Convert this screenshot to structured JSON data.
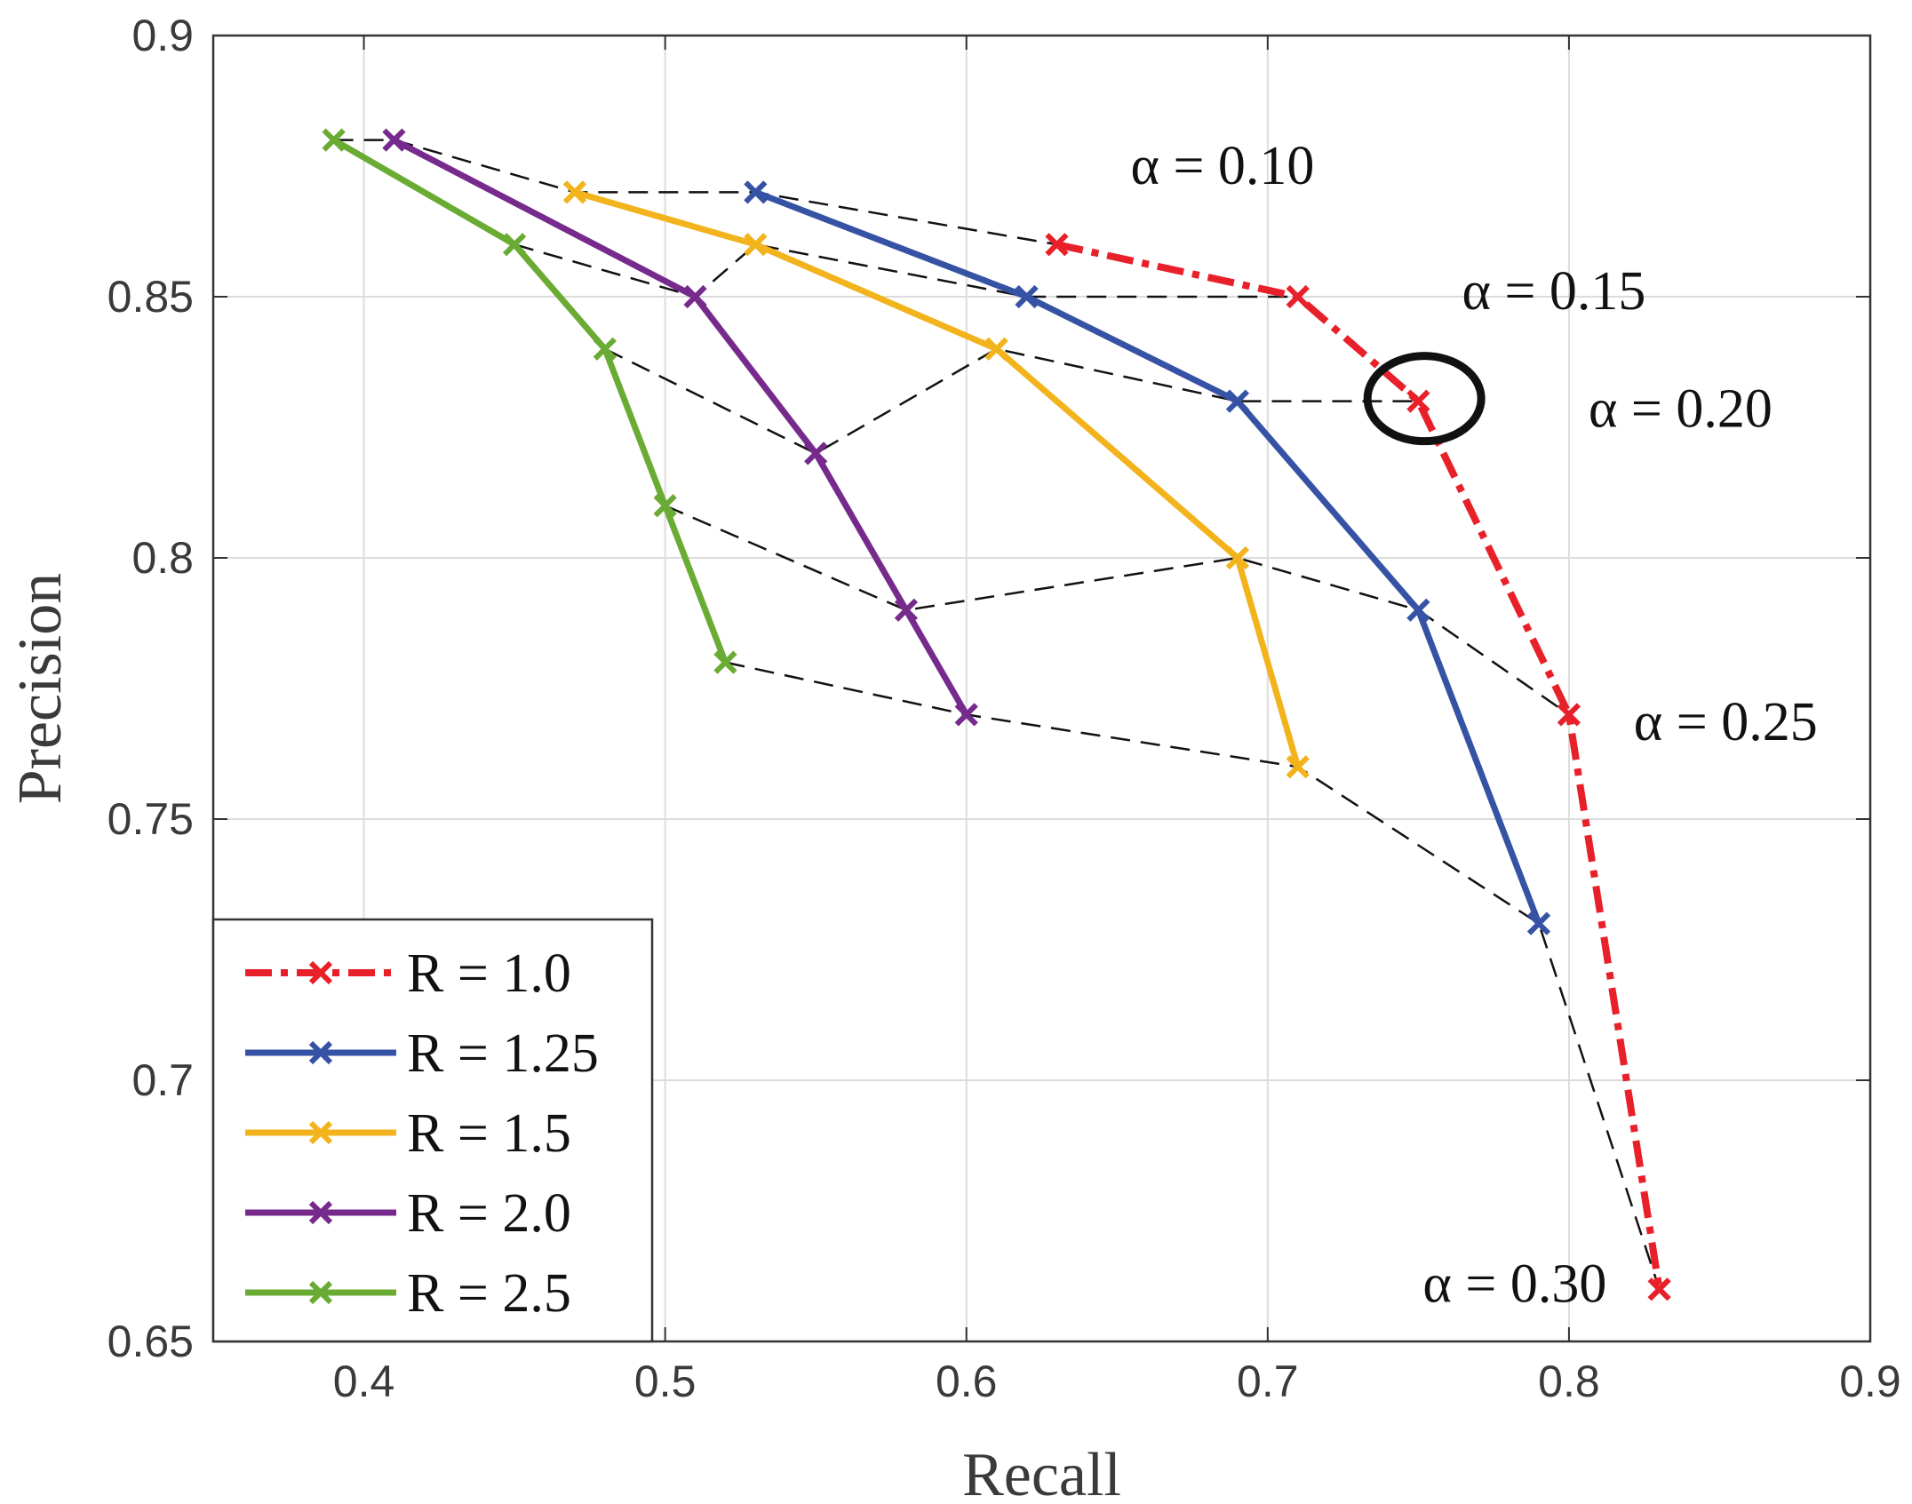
{
  "chart_data": {
    "type": "line",
    "title": "",
    "xlabel": "Recall",
    "ylabel": "Precision",
    "xlim": [
      0.35,
      0.9
    ],
    "ylim": [
      0.65,
      0.9
    ],
    "xticks": [
      0.4,
      0.5,
      0.6,
      0.7,
      0.8,
      0.9
    ],
    "xtick_labels": [
      "0.4",
      "0.5",
      "0.6",
      "0.7",
      "0.8",
      "0.9"
    ],
    "yticks": [
      0.65,
      0.7,
      0.75,
      0.8,
      0.85,
      0.9
    ],
    "ytick_labels": [
      "0.65",
      "0.7",
      "0.75",
      "0.8",
      "0.85",
      "0.9"
    ],
    "grid": true,
    "legend_position": "bottom-left",
    "series": [
      {
        "name": "R = 1.0",
        "color": "#e8202a",
        "style": "dashdot",
        "x": [
          0.63,
          0.71,
          0.75,
          0.8,
          0.83
        ],
        "y": [
          0.86,
          0.85,
          0.83,
          0.77,
          0.66
        ]
      },
      {
        "name": "R = 1.25",
        "color": "#3552a4",
        "style": "solid",
        "x": [
          0.53,
          0.62,
          0.69,
          0.75,
          0.79
        ],
        "y": [
          0.87,
          0.85,
          0.83,
          0.79,
          0.73
        ]
      },
      {
        "name": "R = 1.5",
        "color": "#f2b31c",
        "style": "solid",
        "x": [
          0.47,
          0.53,
          0.61,
          0.69,
          0.71
        ],
        "y": [
          0.87,
          0.86,
          0.84,
          0.8,
          0.76
        ]
      },
      {
        "name": "R = 2.0",
        "color": "#762a8c",
        "style": "solid",
        "x": [
          0.41,
          0.51,
          0.55,
          0.58,
          0.6
        ],
        "y": [
          0.88,
          0.85,
          0.82,
          0.79,
          0.77
        ]
      },
      {
        "name": "R = 2.5",
        "color": "#6aab34",
        "style": "solid",
        "x": [
          0.39,
          0.45,
          0.48,
          0.5,
          0.52
        ],
        "y": [
          0.88,
          0.86,
          0.84,
          0.81,
          0.78
        ]
      }
    ],
    "alpha_contours": [
      {
        "alpha": "0.10",
        "x": [
          0.39,
          0.41,
          0.47,
          0.53,
          0.63
        ],
        "y": [
          0.88,
          0.88,
          0.87,
          0.87,
          0.86
        ]
      },
      {
        "alpha": "0.15",
        "x": [
          0.45,
          0.51,
          0.53,
          0.62,
          0.71
        ],
        "y": [
          0.86,
          0.85,
          0.86,
          0.85,
          0.85
        ]
      },
      {
        "alpha": "0.20",
        "x": [
          0.48,
          0.55,
          0.61,
          0.69,
          0.75
        ],
        "y": [
          0.84,
          0.82,
          0.84,
          0.83,
          0.83
        ]
      },
      {
        "alpha": "0.25",
        "x": [
          0.5,
          0.58,
          0.69,
          0.75,
          0.8
        ],
        "y": [
          0.81,
          0.79,
          0.8,
          0.79,
          0.77
        ]
      },
      {
        "alpha": "0.30",
        "x": [
          0.52,
          0.6,
          0.71,
          0.79,
          0.83
        ],
        "y": [
          0.78,
          0.77,
          0.76,
          0.73,
          0.66
        ]
      }
    ],
    "annotations": [
      {
        "text": "α = 0.10",
        "x": 0.685,
        "y": 0.875
      },
      {
        "text": "α = 0.15",
        "x": 0.795,
        "y": 0.851
      },
      {
        "text": "α = 0.20",
        "x": 0.837,
        "y": 0.8285
      },
      {
        "text": "α = 0.25",
        "x": 0.852,
        "y": 0.7685
      },
      {
        "text": "α = 0.30",
        "x": 0.782,
        "y": 0.661
      }
    ],
    "highlight": {
      "shape": "ellipse",
      "x": 0.752,
      "y": 0.8305
    }
  }
}
